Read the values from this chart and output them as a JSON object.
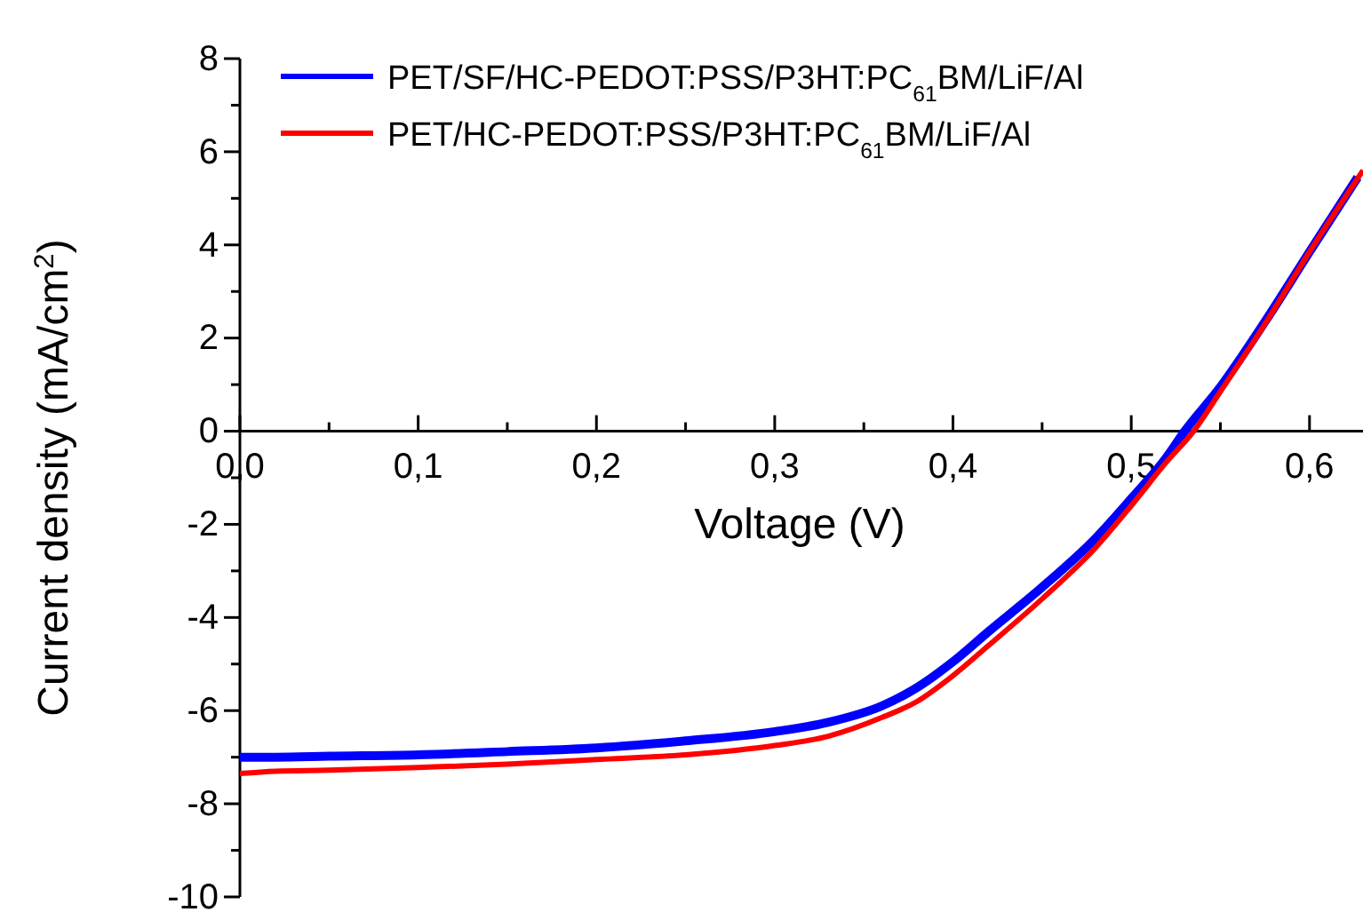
{
  "chart_data": {
    "type": "line",
    "xlabel": "Voltage (V)",
    "ylabel": "Current density (mA/cm$^{2}$)",
    "xlim": [
      0,
      0.63
    ],
    "ylim": [
      -10,
      8
    ],
    "xticks": [
      {
        "value": 0,
        "label": "0,0"
      },
      {
        "value": 0.05,
        "label": null
      },
      {
        "value": 0.1,
        "label": "0,1"
      },
      {
        "value": 0.15,
        "label": null
      },
      {
        "value": 0.2,
        "label": "0,2"
      },
      {
        "value": 0.25,
        "label": null
      },
      {
        "value": 0.3,
        "label": "0,3"
      },
      {
        "value": 0.35,
        "label": null
      },
      {
        "value": 0.4,
        "label": "0,4"
      },
      {
        "value": 0.45,
        "label": null
      },
      {
        "value": 0.5,
        "label": "0,5"
      },
      {
        "value": 0.55,
        "label": null
      },
      {
        "value": 0.6,
        "label": "0,6"
      }
    ],
    "yticks": [
      -10,
      {
        "value": -9,
        "label": null
      },
      -8,
      {
        "value": -7,
        "label": null
      },
      -6,
      {
        "value": -5,
        "label": null
      },
      -4,
      {
        "value": -3,
        "label": null
      },
      -2,
      {
        "value": -1,
        "label": null
      },
      0,
      {
        "value": 1,
        "label": null
      },
      2,
      {
        "value": 3,
        "label": null
      },
      4,
      {
        "value": 5,
        "label": null
      },
      6,
      {
        "value": 7,
        "label": null
      },
      8
    ],
    "legend": "top left",
    "grid": false,
    "marker": "none",
    "line_style": "solid",
    "series": [
      {
        "name": "PET/SF/HC-PEDOT:PSS/P3HT:PC$_{61}$BM/LiF/Al",
        "color": "#0000ff",
        "x": [
          0,
          0.02,
          0.05,
          0.1,
          0.15,
          0.2,
          0.25,
          0.3,
          0.33,
          0.36,
          0.38,
          0.4,
          0.42,
          0.45,
          0.48,
          0.5,
          0.52,
          0.53,
          0.55,
          0.575,
          0.6,
          0.627
        ],
        "values": [
          -7.0,
          -7.0,
          -6.98,
          -6.95,
          -6.88,
          -6.8,
          -6.65,
          -6.45,
          -6.25,
          -5.9,
          -5.5,
          -4.95,
          -4.3,
          -3.35,
          -2.3,
          -1.45,
          -0.55,
          0,
          0.95,
          2.35,
          3.85,
          5.45
        ]
      },
      {
        "name": "PET/HC-PEDOT:PSS/P3HT:PC$_{61}$BM/LiF/Al",
        "color": "#ff0000",
        "x": [
          0,
          0.02,
          0.05,
          0.1,
          0.15,
          0.2,
          0.25,
          0.3,
          0.33,
          0.36,
          0.38,
          0.4,
          0.42,
          0.45,
          0.48,
          0.5,
          0.52,
          0.535,
          0.55,
          0.575,
          0.6,
          0.63
        ],
        "values": [
          -7.35,
          -7.3,
          -7.28,
          -7.22,
          -7.15,
          -7.05,
          -6.95,
          -6.75,
          -6.55,
          -6.15,
          -5.8,
          -5.25,
          -4.6,
          -3.6,
          -2.5,
          -1.6,
          -0.65,
          0,
          0.85,
          2.3,
          3.85,
          5.6
        ]
      }
    ]
  }
}
